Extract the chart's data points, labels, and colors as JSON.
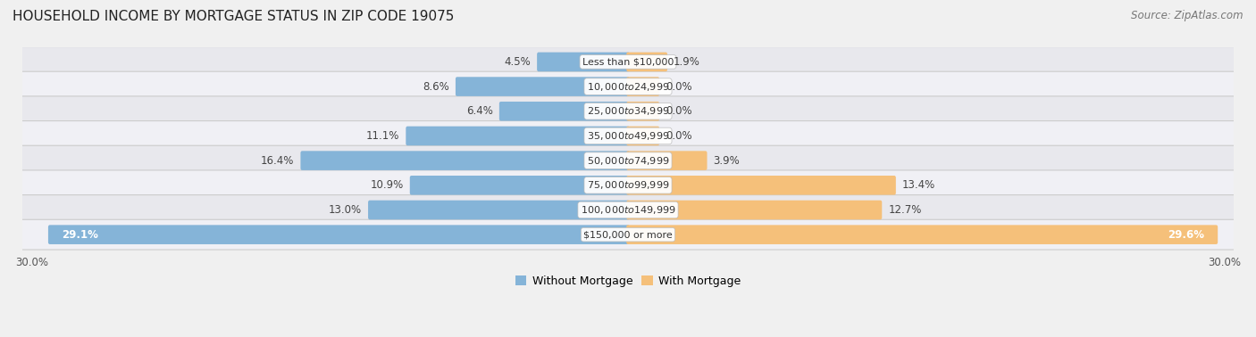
{
  "title": "HOUSEHOLD INCOME BY MORTGAGE STATUS IN ZIP CODE 19075",
  "source": "Source: ZipAtlas.com",
  "categories": [
    "Less than $10,000",
    "$10,000 to $24,999",
    "$25,000 to $34,999",
    "$35,000 to $49,999",
    "$50,000 to $74,999",
    "$75,000 to $99,999",
    "$100,000 to $149,999",
    "$150,000 or more"
  ],
  "without_mortgage": [
    4.5,
    8.6,
    6.4,
    11.1,
    16.4,
    10.9,
    13.0,
    29.1
  ],
  "with_mortgage": [
    1.9,
    0.0,
    0.0,
    0.0,
    3.9,
    13.4,
    12.7,
    29.6
  ],
  "color_without": "#85b4d8",
  "color_with": "#f5c07a",
  "axis_limit": 30.0,
  "background_color": "#f0f0f0",
  "row_color_odd": "#e8e8ed",
  "row_color_even": "#f0f0f5",
  "title_fontsize": 11,
  "source_fontsize": 8.5,
  "label_fontsize": 8.5,
  "bar_label_fontsize": 8.5,
  "cat_label_fontsize": 8.0,
  "legend_fontsize": 9
}
